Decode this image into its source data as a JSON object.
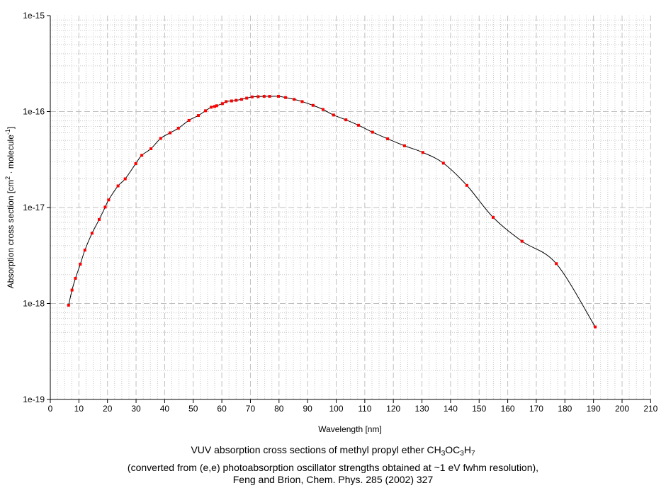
{
  "chart_data": {
    "type": "line",
    "title": "VUV absorption cross sections of methyl propyl ether CH3OC3H7",
    "title_parts": {
      "main": "VUV absorption cross sections of methyl propyl ether CH",
      "s1": "3",
      "m2": "OC",
      "s2": "3",
      "m3": "H",
      "s3": "7"
    },
    "subtitle_lines": [
      "(converted from (e,e) photoabsorption oscillator strengths obtained at ~1 eV fwhm resolution),",
      "Feng and Brion, Chem. Phys. 285 (2002) 327"
    ],
    "xlabel": "Wavelength [nm]",
    "ylabel": "Absorption cross section [cm2 · molecule-1]",
    "ylabel_parts": {
      "a": "Absorption cross section [cm",
      "sup1": "2",
      "b": " · molecule",
      "sup2": "-1",
      "c": "]"
    },
    "xlim": [
      0,
      210
    ],
    "ylim": [
      1e-19,
      1e-15
    ],
    "yscale": "log",
    "grid": true,
    "xticks": [
      0,
      10,
      20,
      30,
      40,
      50,
      60,
      70,
      80,
      90,
      100,
      110,
      120,
      130,
      140,
      150,
      160,
      170,
      180,
      190,
      200,
      210
    ],
    "yticks": [
      "1e-19",
      "1e-18",
      "1e-17",
      "1e-16",
      "1e-15"
    ],
    "series": [
      {
        "name": "CH3OC3H7",
        "line_color": "#000000",
        "marker_color": "#ff0000",
        "x": [
          6.4,
          7.6,
          8.8,
          10.5,
          12.1,
          14.6,
          17.1,
          19.2,
          20.4,
          23.7,
          26.2,
          29.9,
          32.0,
          35.2,
          38.6,
          41.9,
          44.8,
          48.5,
          51.8,
          54.3,
          56.3,
          57.5,
          58.2,
          60.2,
          61.5,
          63.4,
          65.0,
          66.9,
          68.7,
          70.6,
          72.7,
          74.8,
          76.7,
          79.8,
          82.3,
          85.3,
          88.1,
          91.9,
          95.4,
          99.1,
          103.4,
          107.8,
          112.7,
          118.0,
          123.9,
          130.3,
          137.5,
          145.7,
          154.9,
          165.0,
          177.0,
          190.6
        ],
        "y": [
          9.6e-19,
          1.38e-18,
          1.83e-18,
          2.57e-18,
          3.6e-18,
          5.4e-18,
          7.5e-18,
          1.01e-17,
          1.2e-17,
          1.68e-17,
          1.99e-17,
          2.87e-17,
          3.5e-17,
          4.1e-17,
          5.25e-17,
          6e-17,
          6.7e-17,
          8.1e-17,
          9.1e-17,
          1.02e-16,
          1.11e-16,
          1.13e-16,
          1.15e-16,
          1.21e-16,
          1.27e-16,
          1.29e-16,
          1.31e-16,
          1.34e-16,
          1.38e-16,
          1.42e-16,
          1.43e-16,
          1.44e-16,
          1.44e-16,
          1.44e-16,
          1.4e-16,
          1.34e-16,
          1.27e-16,
          1.16e-16,
          1.05e-16,
          9.2e-17,
          8.2e-17,
          7.2e-17,
          6.1e-17,
          5.2e-17,
          4.4e-17,
          3.75e-17,
          2.9e-17,
          1.7e-17,
          7.9e-18,
          4.45e-18,
          2.6e-18,
          5.7e-19
        ]
      }
    ]
  }
}
